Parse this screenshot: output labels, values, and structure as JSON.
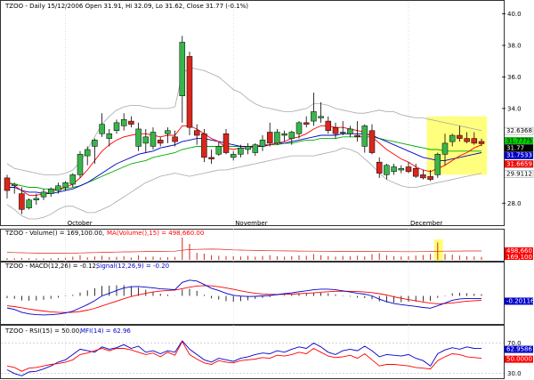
{
  "colors": {
    "up_candle": "#39b54a",
    "down_candle": "#d9261c",
    "sma_red": "#ff0000",
    "sma_blue": "#0000cc",
    "sma_green": "#00aa00",
    "bollinger": "#a8a8a8",
    "highlight": "#ffff66",
    "macd": "#0000cc",
    "signal": "#ff0000",
    "rsi": "#ff0000",
    "mfi": "#0000cc"
  },
  "chart_data": [
    {
      "type": "candlestick",
      "title": "TZOO - Daily 15/12/2006 Open 31.91, Hi 32.09, Lo 31.62, Close 31.77 (-0.1%)",
      "yticks": [
        "40.0",
        "38.0",
        "36.0",
        "34.0",
        "28.0"
      ],
      "ylim": [
        27.0,
        40.2
      ],
      "x_labels": [
        "October",
        "November",
        "December"
      ],
      "x_label_index": [
        8,
        31,
        55
      ],
      "highlight_index_range": [
        58,
        66
      ],
      "ohlc": [
        [
          29.6,
          29.8,
          28.3,
          28.8
        ],
        [
          29.1,
          29.3,
          28.6,
          29.2
        ],
        [
          28.6,
          29.0,
          27.3,
          27.6
        ],
        [
          27.7,
          28.3,
          27.6,
          28.2
        ],
        [
          28.2,
          28.6,
          27.9,
          28.3
        ],
        [
          28.4,
          28.9,
          28.2,
          28.7
        ],
        [
          28.6,
          29.0,
          28.4,
          28.9
        ],
        [
          28.8,
          29.3,
          28.6,
          29.1
        ],
        [
          29.0,
          29.4,
          28.8,
          29.3
        ],
        [
          29.2,
          29.9,
          29.0,
          29.8
        ],
        [
          29.8,
          31.3,
          29.6,
          31.1
        ],
        [
          31.0,
          31.6,
          30.4,
          31.4
        ],
        [
          31.6,
          32.1,
          30.5,
          32.0
        ],
        [
          32.4,
          33.7,
          32.2,
          33.0
        ],
        [
          32.1,
          32.7,
          31.6,
          32.4
        ],
        [
          32.6,
          33.3,
          32.4,
          33.1
        ],
        [
          32.9,
          33.7,
          32.6,
          33.3
        ],
        [
          33.2,
          33.5,
          32.8,
          33.0
        ],
        [
          31.6,
          33.1,
          31.3,
          32.7
        ],
        [
          31.8,
          32.7,
          31.2,
          32.2
        ],
        [
          31.6,
          32.8,
          31.4,
          32.5
        ],
        [
          32.0,
          32.2,
          31.6,
          31.8
        ],
        [
          32.4,
          32.8,
          31.8,
          32.6
        ],
        [
          32.2,
          32.6,
          31.6,
          31.9
        ],
        [
          34.8,
          38.6,
          33.1,
          38.2
        ],
        [
          37.3,
          37.6,
          32.3,
          32.8
        ],
        [
          32.6,
          33.0,
          31.7,
          32.3
        ],
        [
          32.4,
          32.7,
          30.6,
          30.9
        ],
        [
          30.9,
          31.4,
          30.5,
          30.8
        ],
        [
          31.1,
          31.9,
          31.0,
          31.6
        ],
        [
          32.4,
          32.7,
          31.1,
          31.2
        ],
        [
          30.9,
          31.3,
          30.7,
          31.1
        ],
        [
          31.1,
          31.7,
          30.9,
          31.5
        ],
        [
          31.4,
          31.8,
          31.1,
          31.6
        ],
        [
          31.2,
          31.8,
          31.0,
          31.7
        ],
        [
          31.6,
          32.3,
          31.3,
          32.0
        ],
        [
          32.5,
          33.1,
          31.6,
          31.8
        ],
        [
          31.8,
          32.7,
          31.7,
          32.5
        ],
        [
          32.3,
          32.6,
          31.9,
          32.4
        ],
        [
          32.1,
          32.6,
          31.7,
          32.5
        ],
        [
          32.4,
          33.2,
          32.1,
          33.1
        ],
        [
          33.1,
          33.5,
          32.8,
          33.0
        ],
        [
          33.2,
          35.0,
          32.9,
          33.8
        ],
        [
          33.4,
          34.4,
          33.1,
          33.5
        ],
        [
          33.2,
          33.5,
          32.4,
          32.6
        ],
        [
          32.8,
          33.1,
          32.1,
          32.4
        ],
        [
          32.5,
          33.2,
          32.3,
          32.5
        ],
        [
          32.4,
          32.9,
          32.2,
          32.7
        ],
        [
          32.3,
          33.2,
          31.9,
          32.2
        ],
        [
          31.6,
          33.0,
          31.2,
          32.9
        ],
        [
          32.6,
          33.0,
          31.1,
          31.2
        ],
        [
          30.6,
          30.9,
          29.6,
          29.9
        ],
        [
          29.8,
          30.5,
          29.5,
          30.4
        ],
        [
          30.0,
          30.5,
          29.8,
          30.3
        ],
        [
          30.1,
          30.4,
          29.9,
          30.2
        ],
        [
          30.3,
          30.6,
          29.9,
          30.0
        ],
        [
          30.2,
          30.5,
          29.6,
          29.7
        ],
        [
          29.8,
          30.1,
          29.5,
          29.6
        ],
        [
          29.7,
          30.1,
          29.4,
          29.5
        ],
        [
          29.8,
          31.2,
          29.6,
          31.1
        ],
        [
          31.1,
          32.4,
          30.4,
          31.8
        ],
        [
          31.9,
          32.4,
          31.6,
          32.3
        ],
        [
          32.3,
          32.9,
          31.9,
          32.1
        ],
        [
          32.1,
          32.5,
          31.8,
          31.9
        ],
        [
          32.1,
          32.5,
          31.7,
          31.8
        ],
        [
          31.91,
          32.09,
          31.62,
          31.77
        ]
      ],
      "sma_red": [
        29.4,
        29.1,
        28.8,
        28.5,
        28.5,
        28.6,
        28.7,
        28.9,
        29.0,
        29.2,
        29.6,
        30.1,
        30.7,
        31.3,
        31.7,
        32.0,
        32.2,
        32.3,
        32.4,
        32.4,
        32.3,
        32.2,
        32.3,
        32.3,
        32.9,
        32.9,
        32.7,
        32.4,
        32.1,
        31.9,
        31.5,
        31.4,
        31.5,
        31.5,
        31.6,
        31.7,
        31.7,
        31.8,
        31.9,
        32.1,
        32.2,
        32.4,
        32.7,
        32.9,
        32.9,
        32.8,
        32.8,
        32.7,
        32.6,
        32.5,
        32.2,
        31.8,
        31.4,
        31.1,
        30.8,
        30.6,
        30.3,
        30.1,
        30.0,
        30.2,
        30.4,
        30.7,
        31.0,
        31.2,
        31.5,
        31.7
      ],
      "sma_blue": [
        29.0,
        29.0,
        28.8,
        28.7,
        28.7,
        28.6,
        28.6,
        28.7,
        28.8,
        28.9,
        29.1,
        29.3,
        29.6,
        29.9,
        30.2,
        30.5,
        30.7,
        30.9,
        31.1,
        31.2,
        31.3,
        31.5,
        31.6,
        31.7,
        31.9,
        32.0,
        32.1,
        32.1,
        32.0,
        31.9,
        31.8,
        31.7,
        31.6,
        31.6,
        31.6,
        31.6,
        31.7,
        31.8,
        31.8,
        31.9,
        32.0,
        32.1,
        32.2,
        32.3,
        32.3,
        32.3,
        32.4,
        32.4,
        32.4,
        32.4,
        32.3,
        32.1,
        31.9,
        31.7,
        31.5,
        31.3,
        31.1,
        30.9,
        30.8,
        30.7,
        30.7,
        30.8,
        30.9,
        31.0,
        31.1,
        31.2
      ],
      "sma_green": [
        29.3,
        29.2,
        29.1,
        29.0,
        29.0,
        28.9,
        28.9,
        28.9,
        28.9,
        29.0,
        29.1,
        29.3,
        29.5,
        29.7,
        29.9,
        30.1,
        30.3,
        30.5,
        30.6,
        30.7,
        30.9,
        31.0,
        31.1,
        31.2,
        31.4,
        31.5,
        31.6,
        31.6,
        31.6,
        31.6,
        31.6,
        31.6,
        31.6,
        31.6,
        31.6,
        31.6,
        31.7,
        31.7,
        31.8,
        31.8,
        31.9,
        32.0,
        32.0,
        32.1,
        32.1,
        32.1,
        32.2,
        32.2,
        32.2,
        32.2,
        32.2,
        32.1,
        32.0,
        31.9,
        31.8,
        31.7,
        31.6,
        31.5,
        31.4,
        31.4,
        31.3,
        31.3,
        31.3,
        31.3,
        31.3,
        31.3
      ],
      "bb_upper": [
        30.5,
        30.2,
        30.1,
        30.0,
        29.9,
        29.8,
        29.8,
        29.8,
        29.9,
        30.1,
        30.6,
        31.4,
        32.2,
        33.0,
        33.5,
        33.9,
        34.1,
        34.2,
        34.2,
        34.1,
        34.0,
        34.0,
        34.0,
        34.1,
        36.2,
        36.6,
        36.5,
        36.4,
        36.2,
        36.0,
        35.6,
        35.2,
        35.0,
        34.6,
        34.3,
        34.1,
        34.0,
        33.9,
        33.8,
        33.8,
        33.9,
        34.0,
        34.3,
        34.3,
        34.2,
        34.0,
        33.9,
        33.8,
        33.7,
        33.7,
        33.8,
        33.9,
        33.8,
        33.8,
        33.6,
        33.5,
        33.4,
        33.4,
        33.3,
        33.2,
        33.1,
        33.0,
        32.9,
        32.8,
        32.7,
        32.6
      ],
      "bb_lower": [
        27.9,
        27.6,
        27.2,
        27.0,
        27.0,
        27.1,
        27.3,
        27.6,
        27.8,
        27.8,
        27.6,
        27.4,
        27.4,
        27.6,
        27.8,
        28.1,
        28.4,
        28.7,
        29.0,
        29.3,
        29.5,
        29.7,
        29.8,
        29.9,
        29.8,
        29.7,
        29.8,
        29.9,
        30.0,
        30.1,
        30.1,
        30.2,
        30.3,
        30.4,
        30.5,
        30.6,
        30.7,
        30.8,
        30.9,
        31.0,
        31.0,
        31.0,
        31.0,
        31.1,
        31.2,
        31.3,
        31.5,
        31.4,
        31.2,
        30.8,
        30.4,
        29.9,
        29.5,
        29.3,
        29.1,
        29.0,
        29.0,
        29.1,
        29.2,
        29.3,
        29.4,
        29.5,
        29.6,
        29.7,
        29.8,
        29.9
      ],
      "tags": [
        {
          "value": "32.6368",
          "fill": "#ffffff",
          "text": "#000000"
        },
        {
          "value": "31.7775",
          "fill": "#00cc00",
          "text": "#000000"
        },
        {
          "value": "31.77",
          "fill": "#000000",
          "text": "#ffffff"
        },
        {
          "value": "31.7533",
          "fill": "#0000cc",
          "text": "#ffffff"
        },
        {
          "value": "31.6659",
          "fill": "#ff0000",
          "text": "#ffffff"
        },
        {
          "value": "29.9112",
          "fill": "#ffffff",
          "text": "#000000"
        }
      ]
    },
    {
      "type": "bar",
      "title_parts": [
        "TZOO - Volume() = 169,100.00,",
        "MA(Volume(),15) = 498,660.00"
      ],
      "volume": [
        95,
        90,
        110,
        85,
        80,
        90,
        85,
        100,
        120,
        180,
        260,
        140,
        190,
        230,
        160,
        170,
        210,
        130,
        250,
        170,
        190,
        130,
        150,
        160,
        1260,
        900,
        400,
        350,
        260,
        230,
        210,
        200,
        190,
        230,
        180,
        220,
        260,
        200,
        180,
        210,
        250,
        230,
        330,
        260,
        210,
        180,
        220,
        200,
        230,
        190,
        320,
        380,
        260,
        210,
        190,
        200,
        240,
        270,
        330,
        980,
        330,
        290,
        240,
        200,
        190,
        169
      ],
      "volume_ma": [
        420,
        410,
        400,
        390,
        380,
        380,
        380,
        375,
        370,
        375,
        390,
        400,
        410,
        420,
        430,
        440,
        450,
        450,
        460,
        470,
        480,
        480,
        485,
        490,
        540,
        580,
        590,
        600,
        605,
        600,
        580,
        560,
        550,
        540,
        530,
        520,
        515,
        510,
        505,
        500,
        495,
        490,
        488,
        486,
        484,
        480,
        478,
        476,
        474,
        470,
        468,
        466,
        465,
        463,
        462,
        460,
        462,
        465,
        470,
        485,
        492,
        495,
        497,
        498,
        498,
        499
      ],
      "tags": [
        {
          "value": "498,660",
          "fill": "#ff0000",
          "text": "#ffffff"
        },
        {
          "value": "169,100",
          "fill": "#ff0000",
          "text": "#ffffff"
        }
      ]
    },
    {
      "type": "line",
      "title_parts": [
        "TZOO - MACD(12,26) = -0.12,",
        "Signal(12,26,9) = -0.20"
      ],
      "ylim": [
        -1.2,
        1.2
      ],
      "macd": [
        -0.55,
        -0.62,
        -0.75,
        -0.82,
        -0.86,
        -0.87,
        -0.86,
        -0.83,
        -0.78,
        -0.7,
        -0.55,
        -0.4,
        -0.22,
        0.0,
        0.12,
        0.25,
        0.36,
        0.42,
        0.43,
        0.4,
        0.37,
        0.32,
        0.31,
        0.28,
        0.62,
        0.72,
        0.68,
        0.52,
        0.35,
        0.25,
        0.12,
        0.03,
        -0.01,
        -0.03,
        -0.02,
        0.0,
        0.02,
        0.06,
        0.1,
        0.14,
        0.19,
        0.23,
        0.28,
        0.31,
        0.31,
        0.28,
        0.23,
        0.18,
        0.12,
        0.08,
        0.0,
        -0.15,
        -0.26,
        -0.35,
        -0.4,
        -0.44,
        -0.48,
        -0.53,
        -0.56,
        -0.45,
        -0.33,
        -0.2,
        -0.14,
        -0.12,
        -0.12,
        -0.12
      ],
      "signal": [
        -0.45,
        -0.49,
        -0.54,
        -0.6,
        -0.65,
        -0.69,
        -0.73,
        -0.75,
        -0.76,
        -0.75,
        -0.71,
        -0.65,
        -0.57,
        -0.46,
        -0.35,
        -0.24,
        -0.13,
        -0.03,
        0.05,
        0.12,
        0.18,
        0.22,
        0.25,
        0.27,
        0.33,
        0.4,
        0.45,
        0.47,
        0.46,
        0.42,
        0.36,
        0.3,
        0.23,
        0.17,
        0.12,
        0.09,
        0.07,
        0.07,
        0.07,
        0.08,
        0.1,
        0.12,
        0.14,
        0.17,
        0.19,
        0.21,
        0.21,
        0.21,
        0.2,
        0.18,
        0.15,
        0.1,
        0.04,
        -0.04,
        -0.11,
        -0.17,
        -0.22,
        -0.28,
        -0.33,
        -0.36,
        -0.35,
        -0.32,
        -0.28,
        -0.24,
        -0.22,
        -0.2
      ],
      "tags": [
        {
          "value": "-0.20116",
          "fill": "#0000cc",
          "text": "#ffffff"
        }
      ]
    },
    {
      "type": "line",
      "title_parts": [
        "TZOO - RSI(15) = 50.00,",
        "MFI(14) = 62.96"
      ],
      "yticks": [
        "70.0",
        "30.0"
      ],
      "ylim": [
        25,
        80
      ],
      "rsi": [
        40,
        38,
        33,
        37,
        38,
        40,
        42,
        43,
        45,
        48,
        55,
        57,
        60,
        63,
        60,
        63,
        63,
        61,
        58,
        55,
        57,
        52,
        58,
        54,
        72,
        55,
        49,
        44,
        42,
        47,
        45,
        44,
        47,
        48,
        49,
        51,
        50,
        54,
        53,
        55,
        58,
        56,
        63,
        58,
        53,
        51,
        52,
        54,
        50,
        56,
        48,
        40,
        42,
        42,
        41,
        40,
        38,
        37,
        36,
        47,
        52,
        56,
        55,
        52,
        51,
        50
      ],
      "mfi": [
        35,
        30,
        27,
        32,
        33,
        36,
        40,
        45,
        48,
        55,
        62,
        60,
        58,
        65,
        62,
        64,
        68,
        63,
        66,
        58,
        60,
        56,
        60,
        58,
        73,
        62,
        55,
        48,
        45,
        50,
        48,
        46,
        50,
        52,
        55,
        57,
        56,
        60,
        58,
        62,
        65,
        63,
        70,
        65,
        58,
        55,
        60,
        62,
        60,
        66,
        60,
        52,
        55,
        54,
        53,
        55,
        50,
        47,
        40,
        56,
        61,
        64,
        62,
        65,
        63,
        62.96
      ],
      "tags": [
        {
          "value": "62.9586",
          "fill": "#0000cc",
          "text": "#ffffff"
        },
        {
          "value": "50.0000",
          "fill": "#ff0000",
          "text": "#ffffff"
        }
      ]
    }
  ]
}
